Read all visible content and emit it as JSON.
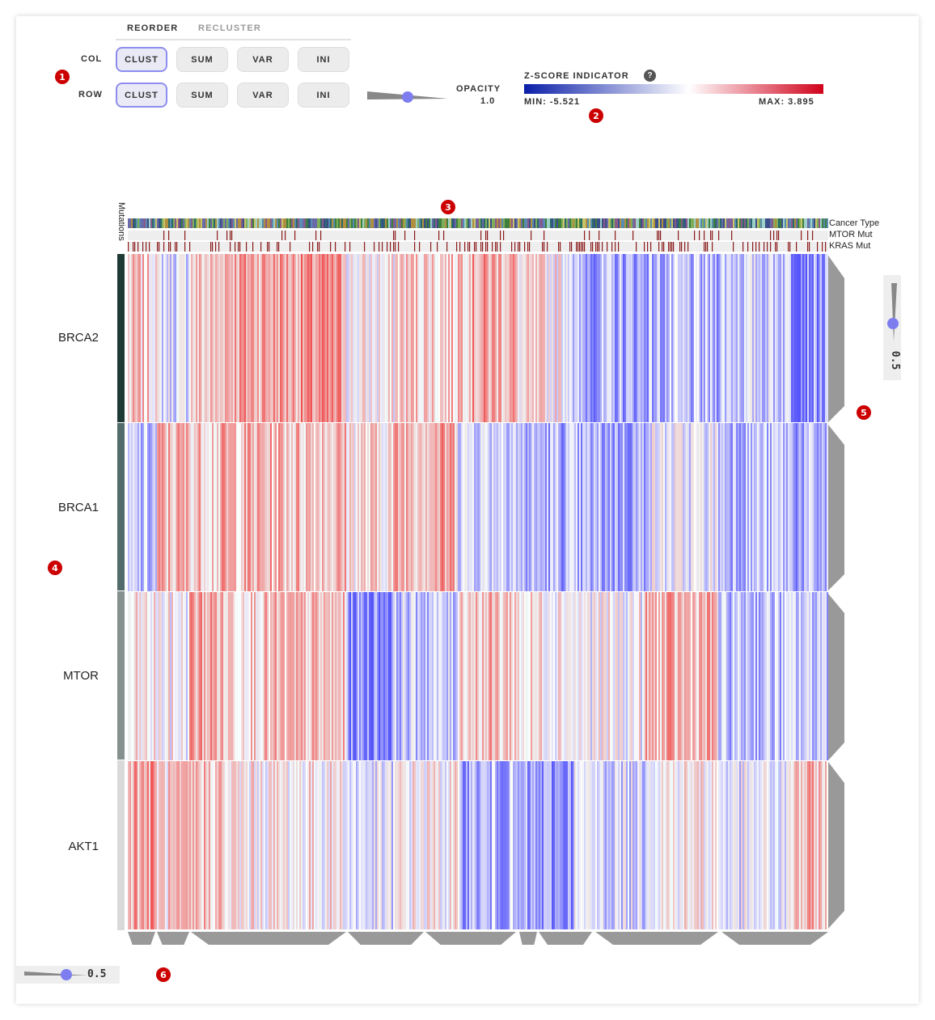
{
  "tabs": {
    "reorder": "REORDER",
    "recluster": "RECLUSTER"
  },
  "reorder": {
    "col_label": "COL",
    "row_label": "ROW",
    "col_buttons": [
      "CLUST",
      "SUM",
      "VAR",
      "INI"
    ],
    "row_buttons": [
      "CLUST",
      "SUM",
      "VAR",
      "INI"
    ],
    "active": "CLUST"
  },
  "opacity": {
    "label": "OPACITY",
    "value": "1.0"
  },
  "zscore": {
    "title": "Z-SCORE INDICATOR",
    "help": "?",
    "min_label": "MIN: -5.521",
    "max_label": "MAX: 3.895",
    "color_low": "#0b1fa8",
    "color_mid": "#ffffff",
    "color_high": "#d0021b"
  },
  "column_tracks": {
    "title": "Mutations",
    "names": [
      "Cancer Type",
      "MTOR Mut",
      "KRAS Mut"
    ]
  },
  "rows": [
    "BRCA2",
    "BRCA1",
    "MTOR",
    "AKT1"
  ],
  "row_dendro_slider": {
    "value": "0.5",
    "fraction": 0.5
  },
  "col_dendro_slider": {
    "value": "0.5",
    "fraction": 0.5
  },
  "annotations": [
    "1",
    "2",
    "3",
    "4",
    "5",
    "6"
  ]
}
